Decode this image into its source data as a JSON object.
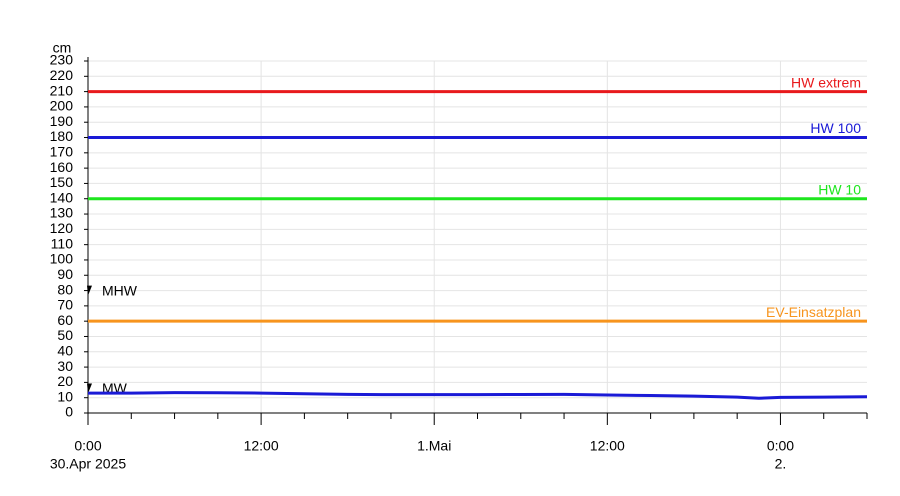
{
  "chart_data": {
    "type": "line",
    "y_unit": "cm",
    "xlim": [
      0,
      54
    ],
    "xticks": [
      {
        "value": 0,
        "label": "0:00"
      },
      {
        "value": 12,
        "label": "12:00"
      },
      {
        "value": 24,
        "label": "1.Mai"
      },
      {
        "value": 36,
        "label": "12:00"
      },
      {
        "value": 48,
        "label": "0:00"
      }
    ],
    "x_date_labels": [
      {
        "value": 0,
        "label": "30.Apr 2025"
      },
      {
        "value": 48,
        "label": "2."
      }
    ],
    "xminorticks": [
      3,
      6,
      9,
      15,
      18,
      21,
      27,
      30,
      33,
      39,
      42,
      45,
      51,
      54
    ],
    "ylim": [
      0,
      230
    ],
    "yticks": [
      0,
      10,
      20,
      30,
      40,
      50,
      60,
      70,
      80,
      90,
      100,
      110,
      120,
      130,
      140,
      150,
      160,
      170,
      180,
      190,
      200,
      210,
      220,
      230
    ],
    "grid": true,
    "thresholds": [
      {
        "name": "HW extrem",
        "value": 210,
        "color": "#e8191c"
      },
      {
        "name": "HW 100",
        "value": 180,
        "color": "#1a1ad6"
      },
      {
        "name": "HW 10",
        "value": 140,
        "color": "#1ee61e"
      },
      {
        "name": "EV-Einsatzplan",
        "value": 60,
        "color": "#f7941d"
      }
    ],
    "markers": [
      {
        "name": "MHW",
        "value": 80
      },
      {
        "name": "MW",
        "value": 16
      }
    ],
    "series": [
      {
        "color": "#1a1ad6",
        "x": [
          0,
          3,
          6,
          9,
          12,
          15,
          18,
          21,
          24,
          27,
          30,
          33,
          36,
          39,
          42,
          45,
          46.5,
          48,
          51,
          54
        ],
        "values": [
          13,
          13,
          13.3,
          13.2,
          13,
          12.6,
          12.2,
          12,
          12,
          12,
          12.1,
          12.2,
          11.8,
          11.4,
          11,
          10.4,
          9.6,
          10.2,
          10.4,
          10.6
        ]
      }
    ]
  }
}
